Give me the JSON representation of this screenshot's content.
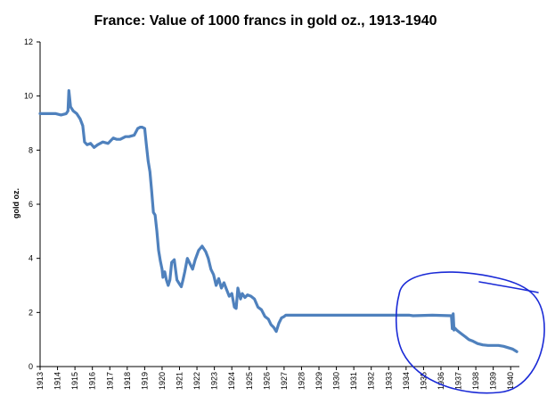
{
  "chart_data": {
    "type": "line",
    "title": "France: Value of 1000 francs in gold oz., 1913-1940",
    "xlabel": "",
    "ylabel": "gold oz.",
    "ylim": [
      0,
      12
    ],
    "yticks": [
      "0",
      "2",
      "4",
      "6",
      "8",
      "10",
      "12"
    ],
    "xticks": [
      "1913",
      "1914",
      "1915",
      "1916",
      "1917",
      "1918",
      "1919",
      "1920",
      "1921",
      "1922",
      "1923",
      "1924",
      "1925",
      "1926",
      "1927",
      "1928",
      "1929",
      "1930",
      "1931",
      "1932",
      "1933",
      "1934",
      "1935",
      "1936",
      "1937",
      "1938",
      "1939",
      "1940"
    ],
    "xlim": [
      1913.0,
      1940.5
    ],
    "grid": false,
    "legend": "none",
    "series_color": "#4f81bd",
    "annotation_color": "#1a2ad6",
    "series": [
      {
        "x": [
          1913.0,
          1913.5,
          1913.9,
          1914.2,
          1914.5,
          1914.6,
          1914.65,
          1914.75,
          1914.9,
          1915.1,
          1915.3,
          1915.45,
          1915.55,
          1915.7,
          1915.9,
          1916.1,
          1916.3,
          1916.6,
          1916.9,
          1917.2,
          1917.4,
          1917.6,
          1917.9,
          1918.1,
          1918.4,
          1918.6,
          1918.75,
          1918.85,
          1919.0,
          1919.1,
          1919.2,
          1919.3,
          1919.4,
          1919.5,
          1919.6,
          1919.7,
          1919.8,
          1919.9,
          1920.0,
          1920.05,
          1920.15,
          1920.25,
          1920.35,
          1920.45,
          1920.55,
          1920.7,
          1920.85,
          1921.0,
          1921.1,
          1921.2,
          1921.3,
          1921.45,
          1921.6,
          1921.75,
          1921.9,
          1922.1,
          1922.3,
          1922.5,
          1922.65,
          1922.8,
          1922.95,
          1923.1,
          1923.25,
          1923.4,
          1923.55,
          1923.7,
          1923.85,
          1924.0,
          1924.15,
          1924.25,
          1924.35,
          1924.5,
          1924.6,
          1924.75,
          1924.9,
          1925.1,
          1925.3,
          1925.5,
          1925.7,
          1925.9,
          1926.1,
          1926.25,
          1926.4,
          1926.55,
          1926.7,
          1926.85,
          1927.0,
          1927.1,
          1927.3,
          1934.0,
          1934.2,
          1934.4,
          1935.5,
          1936.6,
          1936.65,
          1936.7,
          1936.75,
          1936.8,
          1936.9,
          1937.0,
          1937.2,
          1937.4,
          1937.6,
          1937.8,
          1938.1,
          1938.4,
          1938.7,
          1939.0,
          1939.3,
          1939.6,
          1939.85,
          1940.1,
          1940.35
        ],
        "y": [
          9.35,
          9.35,
          9.35,
          9.3,
          9.35,
          9.45,
          10.2,
          9.6,
          9.45,
          9.35,
          9.15,
          8.9,
          8.3,
          8.2,
          8.25,
          8.1,
          8.2,
          8.3,
          8.25,
          8.45,
          8.4,
          8.4,
          8.5,
          8.5,
          8.55,
          8.8,
          8.85,
          8.85,
          8.8,
          8.2,
          7.6,
          7.2,
          6.5,
          5.7,
          5.6,
          5.0,
          4.3,
          3.9,
          3.6,
          3.3,
          3.5,
          3.2,
          3.0,
          3.2,
          3.85,
          3.95,
          3.2,
          3.05,
          2.95,
          3.2,
          3.5,
          4.0,
          3.8,
          3.6,
          3.95,
          4.3,
          4.45,
          4.25,
          4.0,
          3.6,
          3.4,
          3.0,
          3.25,
          2.9,
          3.1,
          2.85,
          2.6,
          2.7,
          2.2,
          2.15,
          2.9,
          2.5,
          2.7,
          2.55,
          2.65,
          2.6,
          2.5,
          2.2,
          2.1,
          1.85,
          1.75,
          1.55,
          1.45,
          1.3,
          1.6,
          1.8,
          1.85,
          1.9,
          1.9,
          1.9,
          1.9,
          1.88,
          1.9,
          1.88,
          1.4,
          1.95,
          1.35,
          1.42,
          1.35,
          1.3,
          1.2,
          1.1,
          1.0,
          0.95,
          0.85,
          0.8,
          0.78,
          0.78,
          0.78,
          0.75,
          0.7,
          0.65,
          0.55
        ]
      }
    ]
  }
}
